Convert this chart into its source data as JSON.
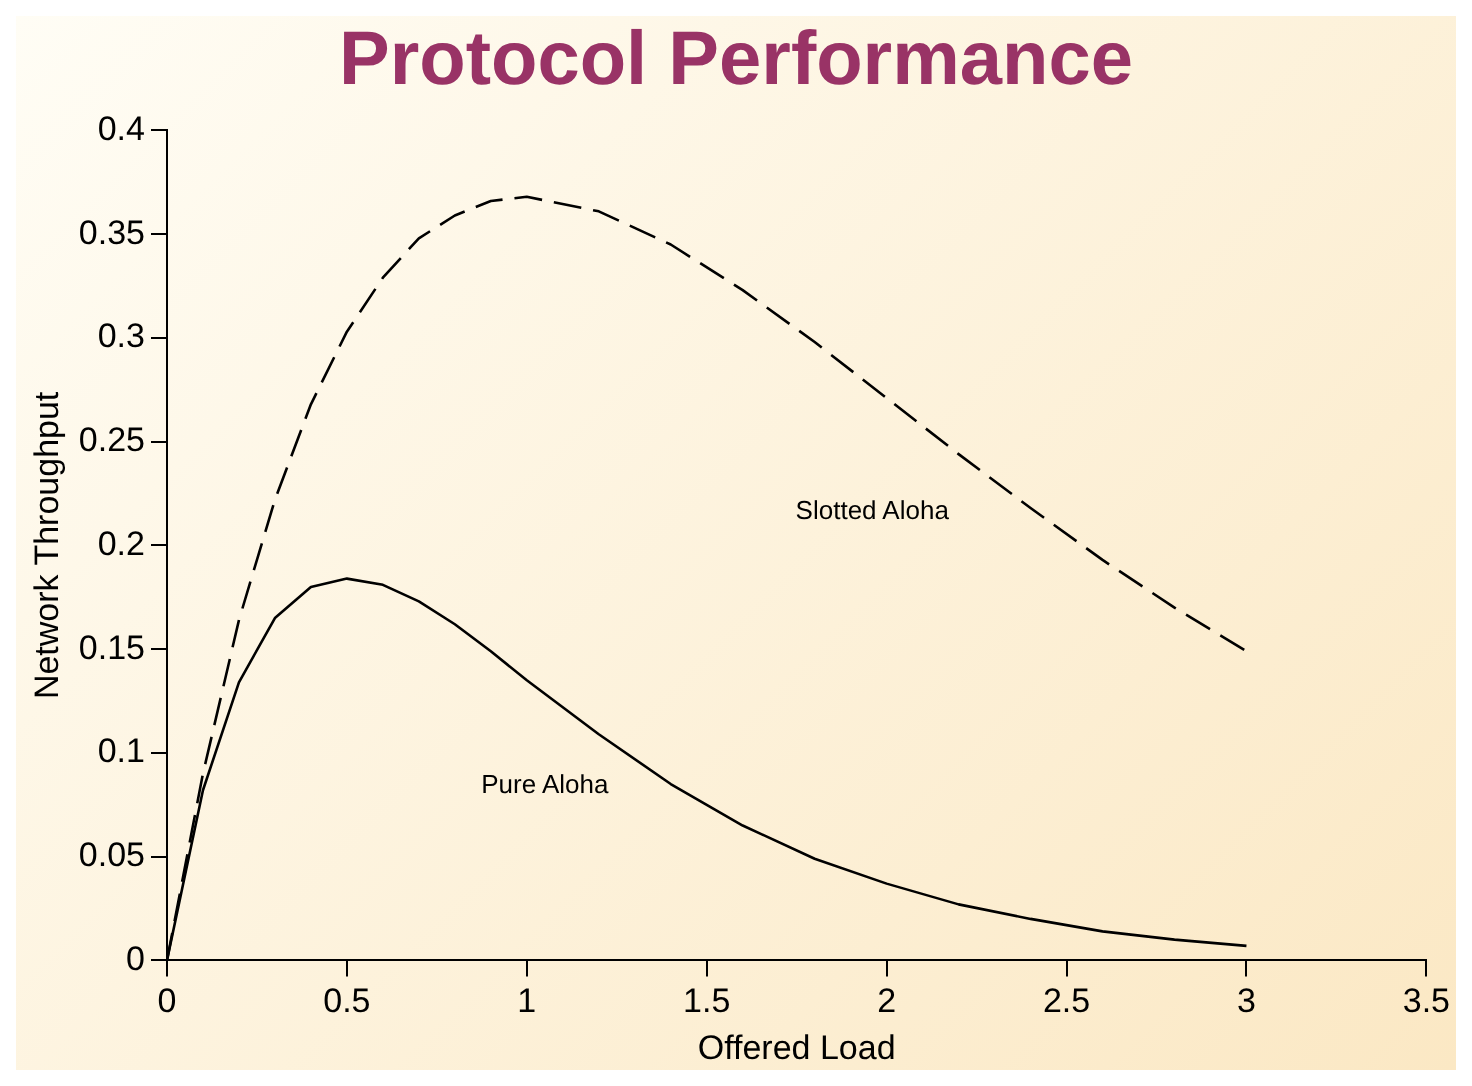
{
  "chart_data": {
    "type": "line",
    "title": "Protocol Performance",
    "xlabel": "Offered Load",
    "ylabel": "Network Throughput",
    "xlim": [
      0,
      3.5
    ],
    "xticks": [
      0,
      0.5,
      1,
      1.5,
      2,
      2.5,
      3,
      3.5
    ],
    "ylim": [
      0,
      0.4
    ],
    "yticks": [
      0,
      0.05,
      0.1,
      0.15,
      0.2,
      0.25,
      0.3,
      0.35,
      0.4
    ],
    "grid": false,
    "legend": false,
    "marker": "none",
    "series": [
      {
        "color": "#000000",
        "line_style": "dashed",
        "x": [
          0,
          0.1,
          0.2,
          0.3,
          0.4,
          0.5,
          0.6,
          0.7,
          0.8,
          0.9,
          1,
          1.2,
          1.4,
          1.6,
          1.8,
          2,
          2.2,
          2.4,
          2.6,
          2.8,
          3
        ],
        "values": [
          0,
          0.09,
          0.164,
          0.222,
          0.268,
          0.303,
          0.329,
          0.348,
          0.359,
          0.366,
          0.368,
          0.361,
          0.345,
          0.323,
          0.298,
          0.271,
          0.244,
          0.218,
          0.193,
          0.17,
          0.149
        ]
      },
      {
        "color": "#000000",
        "line_style": "solid",
        "x": [
          0,
          0.1,
          0.2,
          0.3,
          0.4,
          0.5,
          0.6,
          0.7,
          0.8,
          0.9,
          1,
          1.2,
          1.4,
          1.6,
          1.8,
          2,
          2.2,
          2.4,
          2.6,
          2.8,
          3
        ],
        "values": [
          0,
          0.082,
          0.134,
          0.165,
          0.18,
          0.184,
          0.181,
          0.173,
          0.162,
          0.149,
          0.135,
          0.109,
          0.085,
          0.065,
          0.049,
          0.037,
          0.027,
          0.02,
          0.014,
          0.01,
          0.007
        ]
      }
    ],
    "annotations": [
      "Slotted Aloha",
      "Pure Aloha"
    ]
  }
}
